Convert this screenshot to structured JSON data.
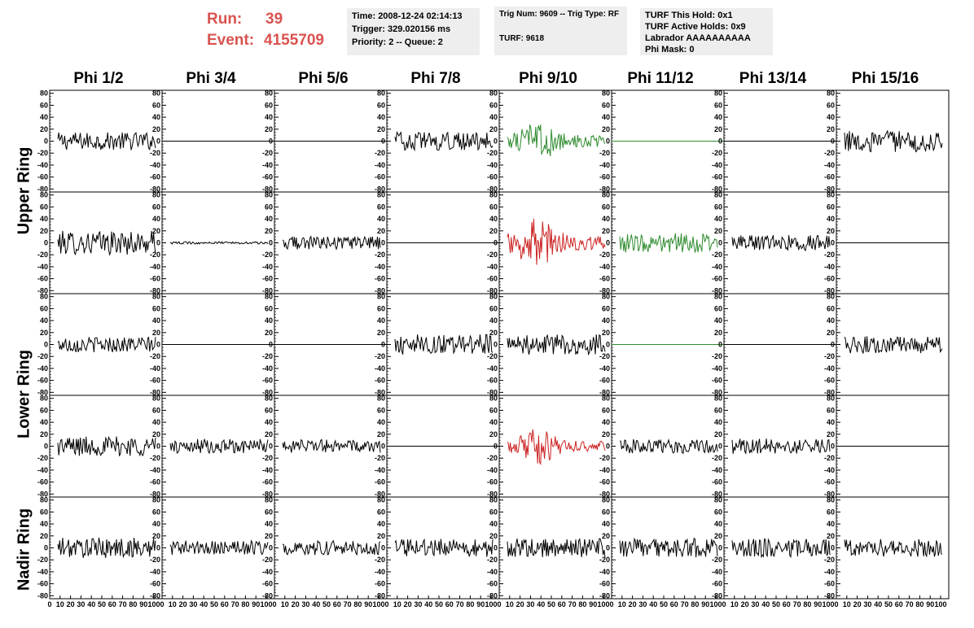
{
  "header": {
    "run_label": "Run:",
    "run_value": "39",
    "event_label": "Event:",
    "event_value": "4155709",
    "box1": [
      "Time: 2008-12-24 02:14:13",
      "Trigger: 329.020156 ms",
      "Priority: 2 -- Queue: 2"
    ],
    "box2": [
      "Trig Num: 9609 -- Trig Type: RF",
      "TURF: 9618"
    ],
    "box3": [
      "TURF This Hold: 0x1",
      "TURF Active Holds: 0x9",
      "Labrador AAAAAAAAAA",
      "Phi Mask: 0"
    ]
  },
  "columns": [
    "Phi 1/2",
    "Phi 3/4",
    "Phi 5/6",
    "Phi 7/8",
    "Phi 9/10",
    "Phi 11/12",
    "Phi 13/14",
    "Phi 15/16"
  ],
  "row_labels": [
    "Upper Ring",
    "Lower Ring",
    "Nadir Ring"
  ],
  "colors": {
    "normal": "#000000",
    "green": "#2e8b2e",
    "red": "#cc2222",
    "header_red": "#d9534f",
    "box_bg": "#eeeeee"
  },
  "chart_data": {
    "type": "line",
    "ylim": [
      -85,
      85
    ],
    "xlim": [
      0,
      100
    ],
    "yticks": [
      80,
      60,
      40,
      20,
      0,
      -20,
      -40,
      -60,
      -80
    ],
    "xtick_labels": [
      "0",
      "10",
      "20",
      "30",
      "40",
      "50",
      "60",
      "70",
      "80",
      "90",
      "100"
    ],
    "panels": [
      [
        {
          "amp": 15,
          "color": "normal"
        },
        {
          "amp": 0,
          "color": "normal"
        },
        {
          "amp": 0,
          "color": "normal"
        },
        {
          "amp": 15,
          "color": "normal"
        },
        {
          "amp": 28,
          "color": "green",
          "burst": true
        },
        {
          "amp": 0,
          "color": "green"
        },
        {
          "amp": 0,
          "color": "normal"
        },
        {
          "amp": 18,
          "color": "normal"
        }
      ],
      [
        {
          "amp": 20,
          "color": "normal"
        },
        {
          "amp": 2,
          "color": "normal"
        },
        {
          "amp": 11,
          "color": "normal"
        },
        {
          "amp": 0,
          "color": "normal"
        },
        {
          "amp": 35,
          "color": "red",
          "burst": true
        },
        {
          "amp": 16,
          "color": "green"
        },
        {
          "amp": 13,
          "color": "normal"
        },
        {
          "amp": 0,
          "color": "normal"
        }
      ],
      [
        {
          "amp": 13,
          "color": "normal"
        },
        {
          "amp": 0,
          "color": "normal"
        },
        {
          "amp": 0,
          "color": "normal"
        },
        {
          "amp": 17,
          "color": "normal"
        },
        {
          "amp": 17,
          "color": "normal"
        },
        {
          "amp": 0,
          "color": "green"
        },
        {
          "amp": 0,
          "color": "normal"
        },
        {
          "amp": 15,
          "color": "normal"
        }
      ],
      [
        {
          "amp": 17,
          "color": "normal"
        },
        {
          "amp": 12,
          "color": "normal"
        },
        {
          "amp": 11,
          "color": "normal"
        },
        {
          "amp": 0,
          "color": "normal"
        },
        {
          "amp": 25,
          "color": "red",
          "burst": true
        },
        {
          "amp": 12,
          "color": "normal"
        },
        {
          "amp": 13,
          "color": "normal"
        },
        {
          "amp": 0,
          "color": "normal"
        }
      ],
      [
        {
          "amp": 17,
          "color": "normal"
        },
        {
          "amp": 12,
          "color": "normal"
        },
        {
          "amp": 12,
          "color": "normal"
        },
        {
          "amp": 15,
          "color": "normal"
        },
        {
          "amp": 16,
          "color": "normal"
        },
        {
          "amp": 16,
          "color": "normal"
        },
        {
          "amp": 15,
          "color": "normal"
        },
        {
          "amp": 15,
          "color": "normal"
        }
      ]
    ]
  }
}
